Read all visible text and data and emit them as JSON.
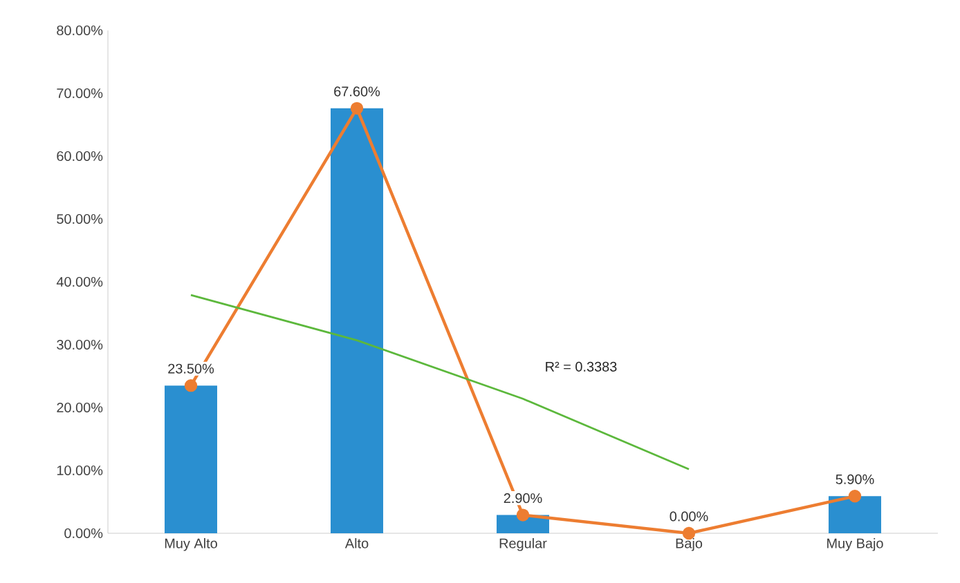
{
  "chart_data": {
    "type": "bar",
    "categories": [
      "Muy Alto",
      "Alto",
      "Regular",
      "Bajo",
      "Muy Bajo"
    ],
    "series": [
      {
        "color": "#2a8fd0",
        "values": [
          23.5,
          67.6,
          2.9,
          0.0,
          5.9
        ],
        "value_labels": [
          "23.50%",
          "67.60%",
          "2.90%",
          "0.00%",
          "5.90%"
        ]
      },
      {
        "type": "line",
        "color": "#ed7d31",
        "marker": "circle",
        "values": [
          23.5,
          67.6,
          2.9,
          0.0,
          5.9
        ]
      },
      {
        "type": "line",
        "color": "#5cb83c",
        "marker": "none",
        "values": [
          37.9,
          30.7,
          21.4,
          10.2,
          null
        ]
      }
    ],
    "annotations": [
      "R² = 0.3383"
    ],
    "ylim": [
      0,
      80
    ],
    "yticks": [
      {
        "value": 0,
        "label": "0.00%"
      },
      {
        "value": 10,
        "label": "10.00%"
      },
      {
        "value": 20,
        "label": "20.00%"
      },
      {
        "value": 30,
        "label": "30.00%"
      },
      {
        "value": 40,
        "label": "40.00%"
      },
      {
        "value": 50,
        "label": "50.00%"
      },
      {
        "value": 60,
        "label": "60.00%"
      },
      {
        "value": 70,
        "label": "70.00%"
      },
      {
        "value": 80,
        "label": "80.00%"
      }
    ],
    "grid": false
  }
}
